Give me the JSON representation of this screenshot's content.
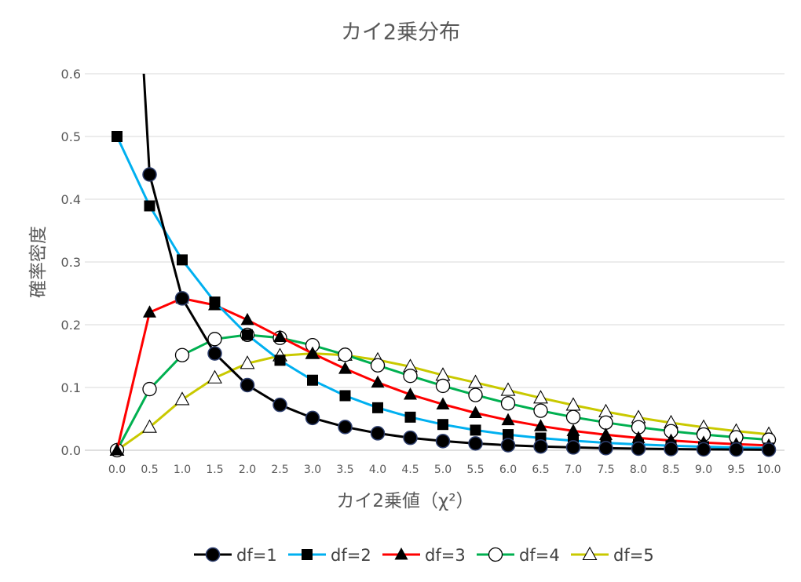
{
  "chart_data": {
    "type": "line",
    "title": "カイ2乗分布",
    "xlabel": "カイ2乗値（χ²）",
    "ylabel": "確率密度",
    "ylim": [
      0,
      0.6
    ],
    "yticks": [
      "0.0",
      "0.1",
      "0.2",
      "0.3",
      "0.4",
      "0.5",
      "0.6"
    ],
    "x": [
      "0.0",
      "0.5",
      "1.0",
      "1.5",
      "2.0",
      "2.5",
      "3.0",
      "3.5",
      "4.0",
      "4.5",
      "5.0",
      "5.5",
      "6.0",
      "6.5",
      "7.0",
      "7.5",
      "8.0",
      "8.5",
      "9.0",
      "9.5",
      "10.0"
    ],
    "grid": "horizontal",
    "legend_position": "bottom",
    "series": [
      {
        "name": "df=1",
        "color": "#000000",
        "marker": "circle-filled",
        "values": [
          null,
          0.4394,
          0.242,
          0.1542,
          0.1038,
          0.0723,
          0.0514,
          0.0371,
          0.027,
          0.0198,
          0.0146,
          0.0108,
          0.008,
          0.006,
          0.0045,
          0.0033,
          0.0025,
          0.0019,
          0.0014,
          0.0011,
          0.0008
        ]
      },
      {
        "name": "df=2",
        "color": "#00b0f0",
        "marker": "square-filled",
        "values": [
          0.5,
          0.3894,
          0.3033,
          0.2362,
          0.1839,
          0.1433,
          0.1116,
          0.0869,
          0.0677,
          0.0527,
          0.041,
          0.032,
          0.0249,
          0.0194,
          0.0151,
          0.0118,
          0.0092,
          0.0071,
          0.0056,
          0.0043,
          0.0034
        ]
      },
      {
        "name": "df=3",
        "color": "#ff0000",
        "marker": "triangle-filled",
        "values": [
          0.0,
          0.2197,
          0.242,
          0.2313,
          0.2076,
          0.1807,
          0.1542,
          0.1299,
          0.1079,
          0.0888,
          0.0732,
          0.0594,
          0.0479,
          0.0385,
          0.0308,
          0.0246,
          0.0195,
          0.0155,
          0.0122,
          0.0096,
          0.0076
        ]
      },
      {
        "name": "df=4",
        "color": "#00b050",
        "marker": "circle-open",
        "values": [
          0.0,
          0.0974,
          0.1516,
          0.1771,
          0.1839,
          0.1791,
          0.1673,
          0.1521,
          0.1353,
          0.1185,
          0.1026,
          0.088,
          0.0747,
          0.063,
          0.0528,
          0.0441,
          0.0366,
          0.0303,
          0.025,
          0.0206,
          0.0168
        ]
      },
      {
        "name": "df=5",
        "color": "#c9c900",
        "marker": "triangle-open",
        "values": [
          0.0,
          0.0366,
          0.0807,
          0.1153,
          0.1384,
          0.1506,
          0.1542,
          0.1515,
          0.1439,
          0.1333,
          0.1196,
          0.1079,
          0.0956,
          0.0834,
          0.0719,
          0.0614,
          0.0519,
          0.0437,
          0.0366,
          0.0305,
          0.0253
        ]
      }
    ]
  }
}
